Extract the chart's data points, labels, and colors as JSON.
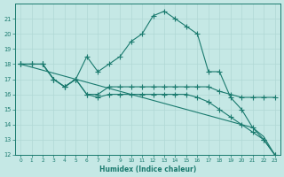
{
  "xlabel": "Humidex (Indice chaleur)",
  "x": [
    0,
    1,
    2,
    3,
    4,
    5,
    6,
    7,
    8,
    9,
    10,
    11,
    12,
    13,
    14,
    15,
    16,
    17,
    18,
    19,
    20,
    21,
    22,
    23
  ],
  "line1": [
    18,
    18,
    18,
    17,
    16.5,
    17,
    18.5,
    17.5,
    18,
    18.5,
    19.5,
    20,
    21.2,
    21.5,
    21,
    20.5,
    20,
    17.5,
    17.5,
    15.8,
    15,
    13.8,
    13,
    12
  ],
  "line2": [
    18,
    18,
    18,
    17,
    16.5,
    17,
    16,
    16,
    16.5,
    16.5,
    16.5,
    16.5,
    16.5,
    16.5,
    16.5,
    16.5,
    16.5,
    16.5,
    16.2,
    16,
    15.8,
    15.8,
    15.8,
    15.8
  ],
  "line3": [
    18,
    18,
    18,
    17,
    16.5,
    17,
    16,
    15.8,
    16,
    16,
    16,
    16,
    16,
    16,
    16,
    16,
    15.8,
    15.5,
    15.0,
    14.5,
    14.0,
    13.5,
    13.0,
    12.0
  ],
  "line4": [
    18,
    17.8,
    17.6,
    17.4,
    17.2,
    17.0,
    16.8,
    16.6,
    16.4,
    16.2,
    16.0,
    15.8,
    15.6,
    15.4,
    15.2,
    15.0,
    14.8,
    14.6,
    14.4,
    14.2,
    14.0,
    13.8,
    13.2,
    12.0
  ],
  "ylim": [
    12,
    22
  ],
  "xlim": [
    -0.5,
    23.5
  ],
  "yticks": [
    12,
    13,
    14,
    15,
    16,
    17,
    18,
    19,
    20,
    21
  ],
  "xticks": [
    0,
    1,
    2,
    3,
    4,
    5,
    6,
    7,
    8,
    9,
    10,
    11,
    12,
    13,
    14,
    15,
    16,
    17,
    18,
    19,
    20,
    21,
    22,
    23
  ],
  "line_color": "#1a7a6e",
  "bg_color": "#c5e8e5",
  "grid_color": "#b0d8d5"
}
